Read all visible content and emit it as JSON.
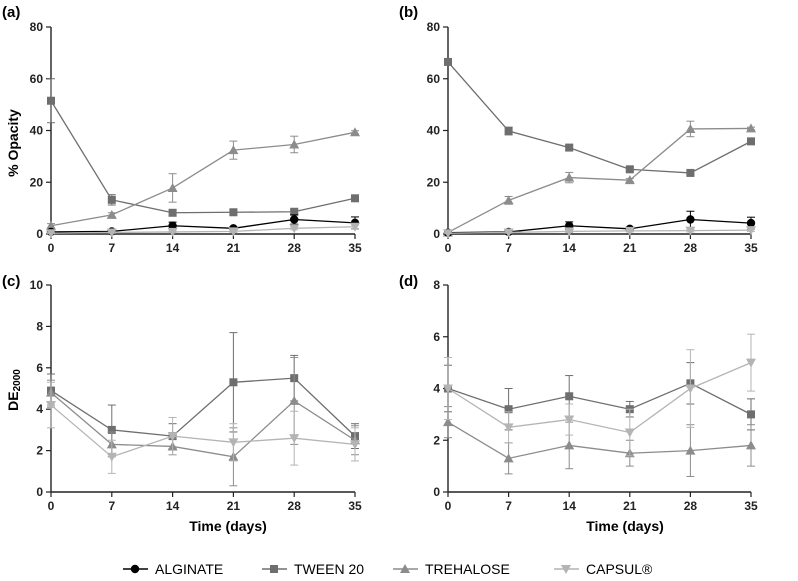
{
  "colors": {
    "alginate": "#000000",
    "tween20": "#6e6e6e",
    "trehalose": "#8c8c8c",
    "capsul": "#b4b4b4",
    "axis": "#222222"
  },
  "legend": [
    {
      "key": "alginate",
      "label": "ALGINATE",
      "marker": "circle"
    },
    {
      "key": "tween20",
      "label": "TWEEN 20",
      "marker": "square"
    },
    {
      "key": "trehalose",
      "label": "TREHALOSE",
      "marker": "triangle-up"
    },
    {
      "key": "capsul",
      "label": "CAPSUL®",
      "marker": "triangle-down"
    }
  ],
  "chart_data": [
    {
      "type": "line",
      "panel": "(a)",
      "title": "",
      "ylabel": "% Opacity",
      "xlabel": "",
      "x": [
        0,
        7,
        14,
        21,
        28,
        35
      ],
      "xticks": [
        "0",
        "7",
        "14",
        "21",
        "28",
        "35"
      ],
      "ylim": [
        0,
        80
      ],
      "yticks": [
        "0",
        "20",
        "40",
        "60",
        "80"
      ],
      "series": [
        {
          "key": "tween20",
          "name": "TWEEN 20",
          "values": [
            51.5,
            13.2,
            8.2,
            8.4,
            8.6,
            13.8
          ],
          "err": [
            8.5,
            2.0,
            1.2,
            0.8,
            0.9,
            0.6
          ]
        },
        {
          "key": "trehalose",
          "name": "TREHALOSE",
          "values": [
            3.2,
            7.4,
            17.8,
            32.4,
            34.6,
            39.3
          ],
          "err": [
            0.8,
            0.8,
            5.5,
            3.5,
            3.2,
            0.6
          ]
        },
        {
          "key": "alginate",
          "name": "ALGINATE",
          "values": [
            0.8,
            1.0,
            3.2,
            2.2,
            5.6,
            4.3
          ],
          "err": [
            0.4,
            0.4,
            1.4,
            0.6,
            1.8,
            2.3
          ]
        },
        {
          "key": "capsul",
          "name": "CAPSUL®",
          "values": [
            0.3,
            0.6,
            0.8,
            1.0,
            2.2,
            2.8
          ],
          "err": [
            0.2,
            0.3,
            0.3,
            0.4,
            0.6,
            0.8
          ]
        }
      ]
    },
    {
      "type": "line",
      "panel": "(b)",
      "title": "",
      "ylabel": "",
      "xlabel": "",
      "x": [
        0,
        7,
        14,
        21,
        28,
        35
      ],
      "xticks": [
        "0",
        "7",
        "14",
        "21",
        "28",
        "35"
      ],
      "ylim": [
        0,
        80
      ],
      "yticks": [
        "0",
        "20",
        "40",
        "60",
        "80"
      ],
      "series": [
        {
          "key": "tween20",
          "name": "TWEEN 20",
          "values": [
            66.5,
            39.8,
            33.4,
            25.0,
            23.6,
            35.8
          ],
          "err": [
            1.0,
            1.5,
            0.9,
            0.8,
            0.8,
            1.2
          ]
        },
        {
          "key": "trehalose",
          "name": "TREHALOSE",
          "values": [
            0.6,
            13.0,
            21.8,
            20.8,
            40.6,
            40.8
          ],
          "err": [
            0.3,
            1.5,
            2.0,
            0.6,
            3.0,
            0.5
          ]
        },
        {
          "key": "alginate",
          "name": "ALGINATE",
          "values": [
            0.5,
            0.8,
            3.2,
            2.0,
            5.6,
            4.2
          ],
          "err": [
            0.3,
            0.4,
            1.5,
            0.6,
            3.2,
            2.3
          ]
        },
        {
          "key": "capsul",
          "name": "CAPSUL®",
          "values": [
            0.3,
            0.6,
            1.0,
            1.2,
            1.3,
            1.5
          ],
          "err": [
            0.2,
            0.3,
            0.4,
            0.4,
            0.5,
            0.5
          ]
        }
      ]
    },
    {
      "type": "line",
      "panel": "(c)",
      "title": "",
      "ylabel": "DE",
      "ylabel_sub": "2000",
      "xlabel": "Time (days)",
      "x": [
        0,
        7,
        14,
        21,
        28,
        35
      ],
      "xticks": [
        "0",
        "7",
        "14",
        "21",
        "28",
        "35"
      ],
      "ylim": [
        0,
        10
      ],
      "yticks": [
        "0",
        "2",
        "4",
        "6",
        "8",
        "10"
      ],
      "series": [
        {
          "key": "tween20",
          "name": "TWEEN 20",
          "values": [
            4.9,
            3.0,
            2.7,
            5.3,
            5.5,
            2.7
          ],
          "err": [
            0.8,
            1.2,
            0.6,
            2.4,
            1.1,
            0.6
          ]
        },
        {
          "key": "trehalose",
          "name": "TREHALOSE",
          "values": [
            4.8,
            2.3,
            2.2,
            1.7,
            4.4,
            2.5
          ],
          "err": [
            0.6,
            0.6,
            0.4,
            1.4,
            2.1,
            0.7
          ]
        },
        {
          "key": "capsul",
          "name": "CAPSUL®",
          "values": [
            4.2,
            1.7,
            2.7,
            2.4,
            2.6,
            2.3
          ],
          "err": [
            1.1,
            0.8,
            0.9,
            0.9,
            1.3,
            0.8
          ]
        }
      ]
    },
    {
      "type": "line",
      "panel": "(d)",
      "title": "",
      "ylabel": "",
      "xlabel": "Time (days)",
      "x": [
        0,
        7,
        14,
        21,
        28,
        35
      ],
      "xticks": [
        "0",
        "7",
        "14",
        "21",
        "28",
        "35"
      ],
      "ylim": [
        0,
        8
      ],
      "yticks": [
        "0",
        "2",
        "4",
        "6",
        "8"
      ],
      "series": [
        {
          "key": "tween20",
          "name": "TWEEN 20",
          "values": [
            4.0,
            3.2,
            3.7,
            3.2,
            4.2,
            3.0
          ],
          "err": [
            0.9,
            0.8,
            0.8,
            0.3,
            0.8,
            0.6
          ]
        },
        {
          "key": "trehalose",
          "name": "TREHALOSE",
          "values": [
            2.7,
            1.3,
            1.8,
            1.5,
            1.6,
            1.8
          ],
          "err": [
            0.6,
            0.6,
            0.9,
            0.5,
            1.0,
            0.8
          ]
        },
        {
          "key": "capsul",
          "name": "CAPSUL®",
          "values": [
            4.0,
            2.5,
            2.8,
            2.3,
            4.0,
            5.0
          ],
          "err": [
            1.2,
            0.6,
            0.6,
            0.9,
            1.5,
            1.1
          ]
        }
      ]
    }
  ]
}
